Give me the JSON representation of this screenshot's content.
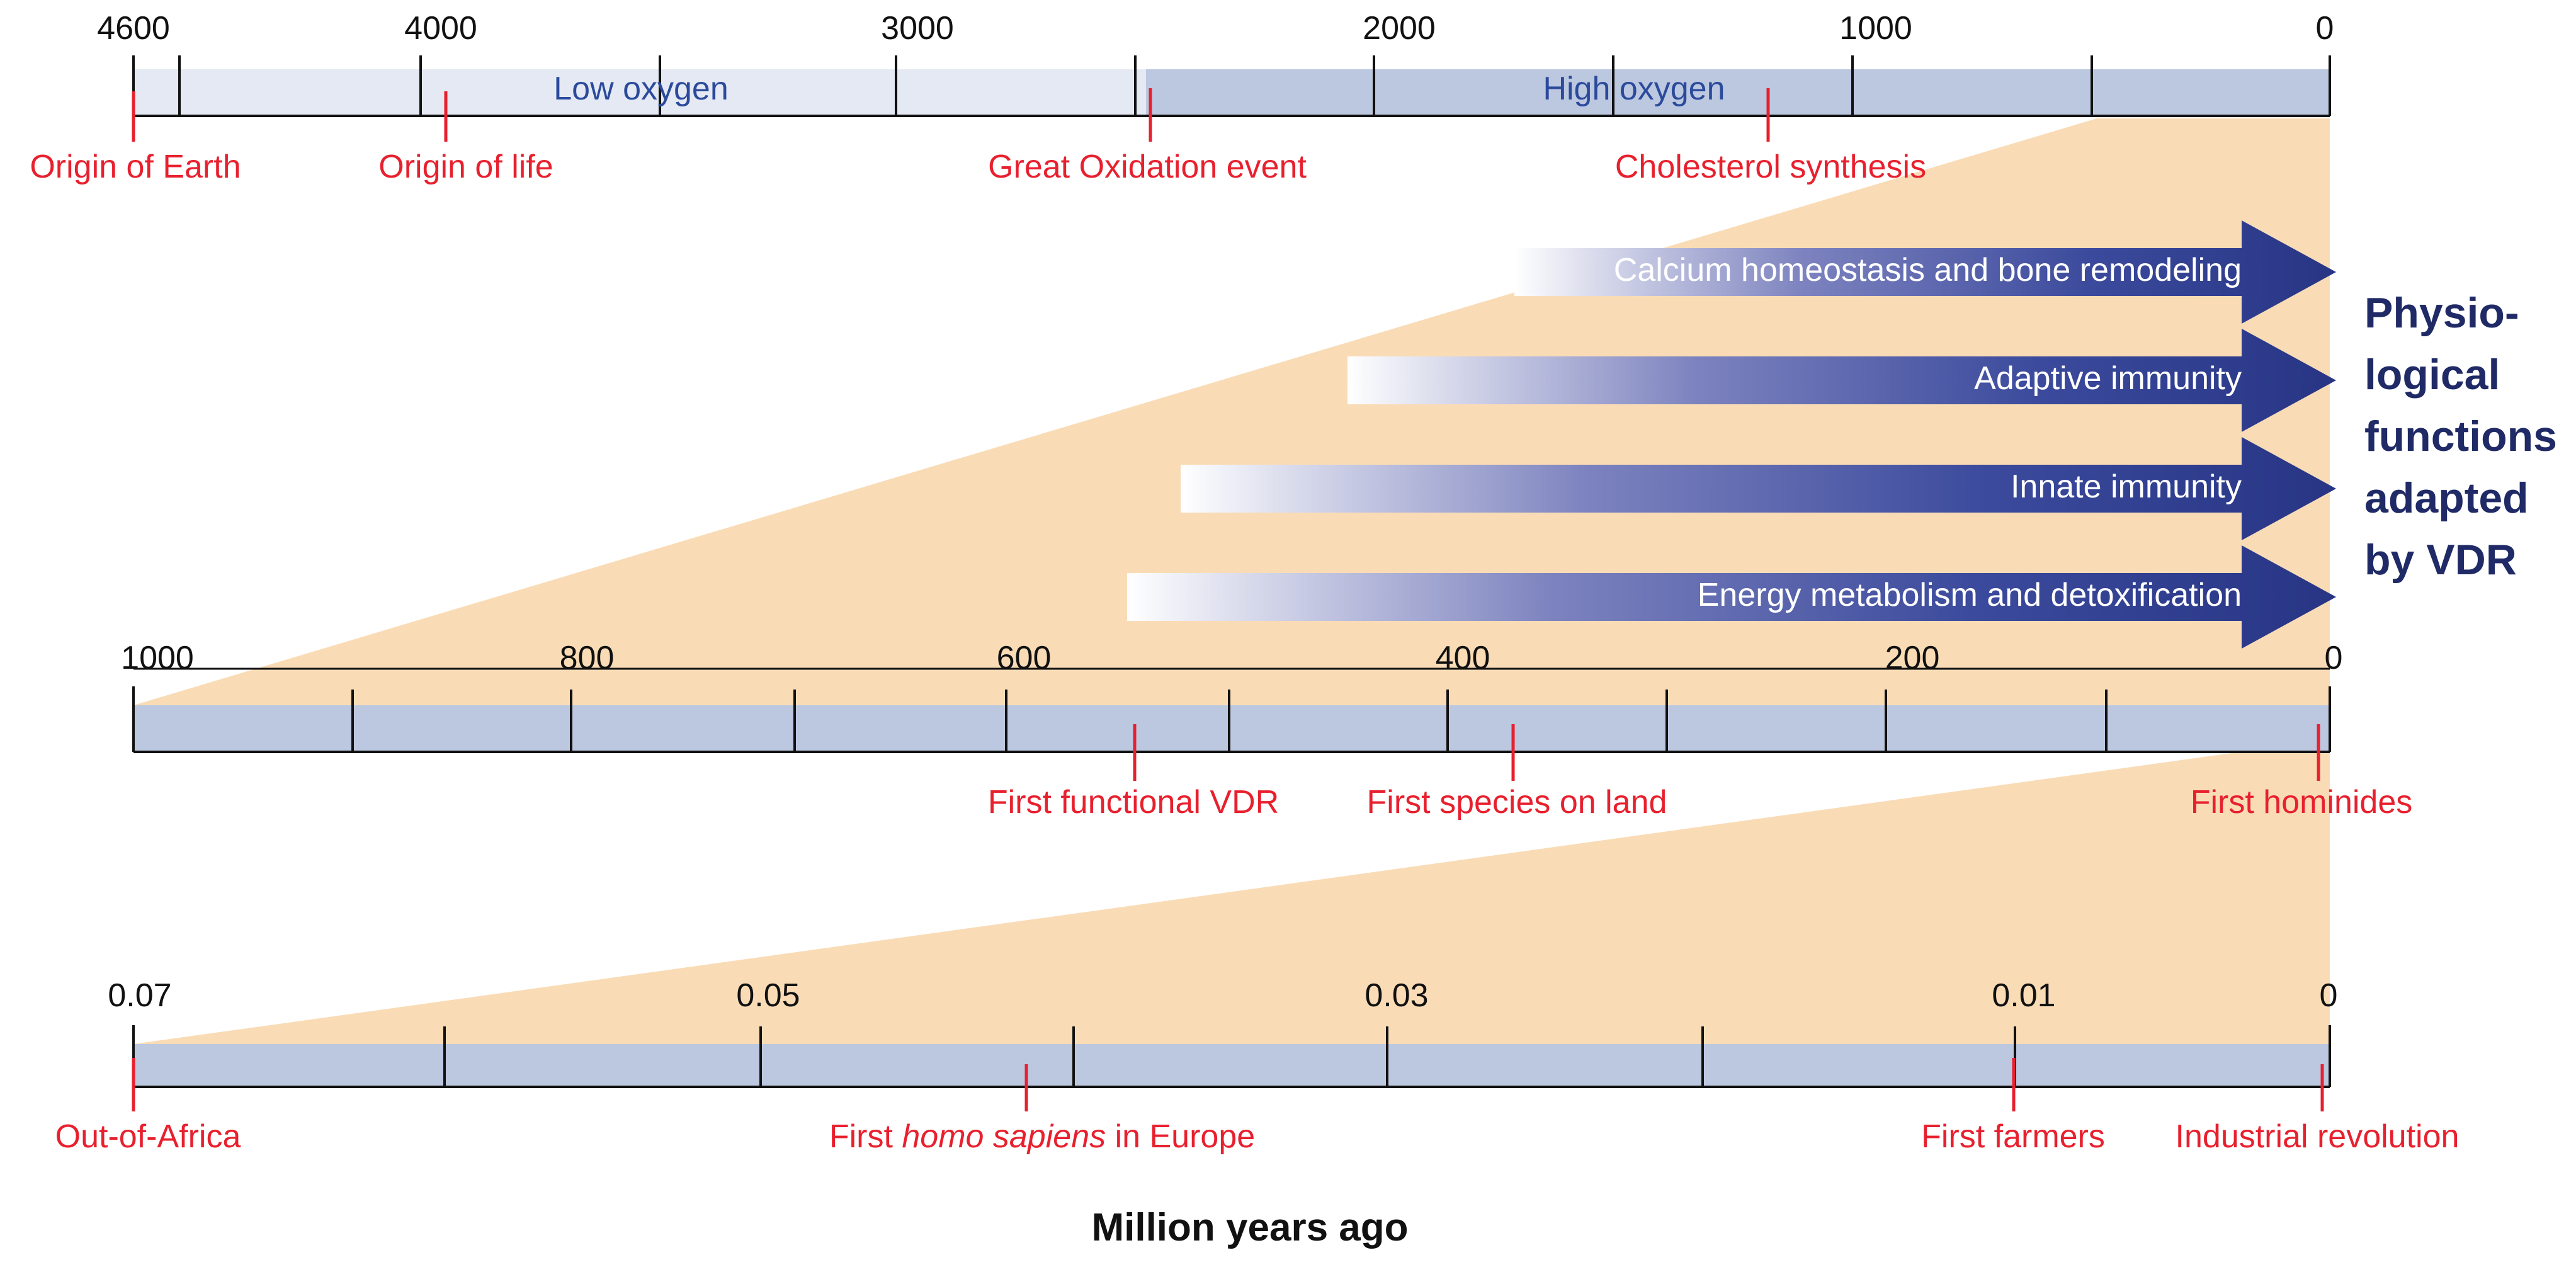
{
  "colors": {
    "zoom": "#f9dcb6",
    "bar_low": "#e4e9f3",
    "bar_high": "#bcc7e0",
    "event": "#e8202e",
    "arrow_dark": "#2b3a8f",
    "side_text": "#1f2a66"
  },
  "timeline1": {
    "ticks": [
      "4600",
      "4000",
      "3000",
      "2000",
      "1000",
      "0"
    ],
    "low_label": "Low oxygen",
    "high_label": "High oxygen",
    "events": [
      "Origin of Earth",
      "Origin of life",
      "Great Oxidation event",
      "Cholesterol synthesis"
    ]
  },
  "timeline2": {
    "ticks": [
      "1000",
      "800",
      "600",
      "400",
      "200",
      "0"
    ],
    "events": [
      "First functional VDR",
      "First species on land",
      "First hominides"
    ]
  },
  "timeline3": {
    "ticks": [
      "0.07",
      "0.05",
      "0.03",
      "0.01",
      "0"
    ],
    "events": {
      "out_of_africa": "Out-of-Africa",
      "hs_pre": "First ",
      "hs_italic": "homo sapiens",
      "hs_post": " in Europe",
      "farmers": "First farmers",
      "industrial": "Industrial revolution"
    }
  },
  "arrows": [
    "Calcium homeostasis and bone remodeling",
    "Adaptive immunity",
    "Innate immunity",
    "Energy metabolism and detoxification"
  ],
  "side_label": [
    "Physio-",
    "logical",
    "functions",
    "adapted",
    "by VDR"
  ],
  "axis_title": "Million years ago"
}
